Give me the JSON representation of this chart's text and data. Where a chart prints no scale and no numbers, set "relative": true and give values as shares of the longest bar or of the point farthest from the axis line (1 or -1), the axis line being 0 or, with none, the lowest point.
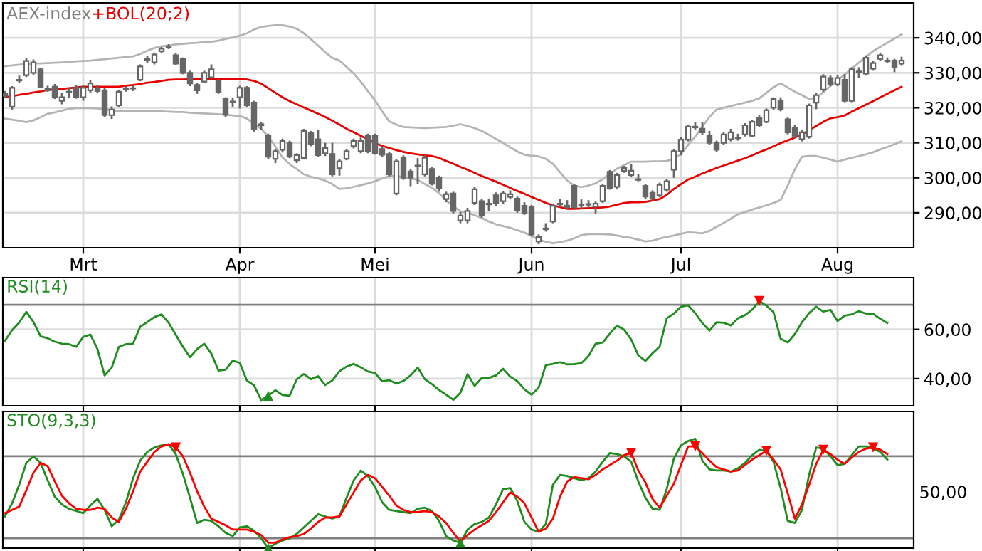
{
  "chart_data": [
    {
      "type": "candlestick",
      "title": "AEX-index",
      "color": "#666666",
      "categories": [
        null,
        null,
        null,
        null,
        null,
        null,
        null,
        null,
        null,
        null,
        null,
        "Mrt",
        null,
        null,
        null,
        null,
        null,
        null,
        null,
        null,
        null,
        null,
        null,
        null,
        null,
        null,
        null,
        null,
        null,
        null,
        null,
        null,
        null,
        "Apr",
        null,
        null,
        null,
        null,
        null,
        null,
        null,
        null,
        null,
        null,
        null,
        null,
        null,
        null,
        null,
        null,
        null,
        null,
        "Mei",
        null,
        null,
        null,
        null,
        null,
        null,
        null,
        null,
        null,
        null,
        null,
        null,
        null,
        null,
        null,
        null,
        null,
        null,
        null,
        null,
        null,
        "Jun",
        null,
        null,
        null,
        null,
        null,
        null,
        null,
        null,
        null,
        null,
        null,
        null,
        null,
        null,
        null,
        null,
        null,
        null,
        null,
        null,
        "Jul",
        null,
        null,
        null,
        null,
        null,
        null,
        null,
        null,
        null,
        null,
        null,
        null,
        null,
        null,
        null,
        null,
        null,
        null,
        null,
        null,
        null,
        "Aug",
        null,
        null,
        null,
        null,
        null,
        null,
        null,
        null,
        null
      ],
      "ohlc": [
        [
          324,
          324.8,
          322.8,
          323.4
        ],
        [
          320.3,
          326.2,
          319.5,
          325.7
        ],
        [
          327.8,
          329.2,
          327.2,
          328.0
        ],
        [
          329.3,
          334.2,
          328.8,
          333.4
        ],
        [
          330,
          333.8,
          329.5,
          333
        ],
        [
          331,
          331.5,
          325.6,
          326
        ],
        [
          325.4,
          326.3,
          324.6,
          325
        ],
        [
          326,
          326.8,
          322.5,
          323
        ],
        [
          322,
          324.2,
          321,
          323
        ],
        [
          324.5,
          325.8,
          322.8,
          324.6
        ],
        [
          325.7,
          326.5,
          322.6,
          323
        ],
        [
          323,
          326.4,
          322,
          325.7
        ],
        [
          325,
          328,
          324.3,
          327
        ],
        [
          325.6,
          326.4,
          324.2,
          324.8
        ],
        [
          325,
          325.6,
          317.4,
          317.9
        ],
        [
          317.9,
          320.4,
          316.8,
          319.5
        ],
        [
          320.7,
          325.2,
          320.1,
          324.6
        ],
        [
          325.3,
          326.2,
          324.6,
          325.5
        ],
        [
          325.5,
          326.4,
          324.8,
          325.6
        ],
        [
          328,
          332.4,
          327.6,
          331.8
        ],
        [
          333.7,
          334.8,
          332.8,
          333.9
        ],
        [
          333,
          335.8,
          332.4,
          335.2
        ],
        [
          336.2,
          337.4,
          335.6,
          336.9
        ],
        [
          337.3,
          338.2,
          336.8,
          337.5
        ],
        [
          335,
          335.6,
          332.2,
          332.6
        ],
        [
          333.9,
          334.4,
          329.6,
          330
        ],
        [
          330,
          330.6,
          326.2,
          327
        ],
        [
          326.5,
          327.2,
          324,
          325
        ],
        [
          327.5,
          330.6,
          327,
          330
        ],
        [
          328.7,
          332.4,
          328.2,
          331
        ],
        [
          327.6,
          328.2,
          324,
          324.4
        ],
        [
          322.5,
          323,
          317.4,
          318
        ],
        [
          321.6,
          322.8,
          320.2,
          321.8
        ],
        [
          323,
          326.3,
          319.8,
          325.7
        ],
        [
          325.7,
          326.2,
          320.2,
          320.7
        ],
        [
          321.5,
          322,
          313.2,
          313.8
        ],
        [
          315.3,
          316,
          313.6,
          315
        ],
        [
          312,
          312.6,
          305.4,
          306
        ],
        [
          305.4,
          308.2,
          304.2,
          307.6
        ],
        [
          308,
          311.2,
          307.2,
          310.5
        ],
        [
          310,
          310.6,
          305.6,
          306
        ],
        [
          305,
          307,
          304.2,
          306.5
        ],
        [
          305.6,
          314,
          305.2,
          313.4
        ],
        [
          312.8,
          313.4,
          309,
          309.6
        ],
        [
          311,
          313.8,
          306,
          306.5
        ],
        [
          307,
          310,
          306.2,
          308.5
        ],
        [
          306.8,
          310,
          300.4,
          301
        ],
        [
          302.7,
          305.4,
          300.6,
          304.7
        ],
        [
          305.4,
          308.2,
          305,
          307.6
        ],
        [
          309,
          311.2,
          308.4,
          310.5
        ],
        [
          307.6,
          311.5,
          307,
          310.5
        ],
        [
          312,
          312.6,
          307,
          307.6
        ],
        [
          312,
          312.6,
          306.6,
          307
        ],
        [
          308.2,
          309,
          306,
          306.6
        ],
        [
          306.8,
          307.4,
          300.4,
          301
        ],
        [
          295.5,
          305.4,
          295,
          304.7
        ],
        [
          305.7,
          306.4,
          299.4,
          300
        ],
        [
          301.8,
          302.6,
          297.6,
          300
        ],
        [
          303.3,
          305.6,
          298.2,
          303.5
        ],
        [
          301,
          306.4,
          300.4,
          305.7
        ],
        [
          302.5,
          303,
          297.8,
          298.3
        ],
        [
          300,
          300.6,
          296,
          297
        ],
        [
          293.9,
          296,
          293,
          295.3
        ],
        [
          295.5,
          296,
          289.8,
          290.5
        ],
        [
          287.8,
          290.2,
          287,
          289.2
        ],
        [
          287.8,
          291.4,
          287,
          290.5
        ],
        [
          292.8,
          297.4,
          292.2,
          296.7
        ],
        [
          293.3,
          294,
          288.6,
          289.2
        ],
        [
          292.4,
          294,
          290.4,
          292.6
        ],
        [
          295,
          295.8,
          291.8,
          292.8
        ],
        [
          293.3,
          296.2,
          292.6,
          295.5
        ],
        [
          294.5,
          296.4,
          293.8,
          295.3
        ],
        [
          294,
          294.6,
          290,
          290.6
        ],
        [
          292,
          293,
          289.4,
          290
        ],
        [
          291.6,
          292.2,
          283.2,
          283.8
        ],
        [
          281.8,
          283.8,
          281,
          283.1
        ],
        [
          285.3,
          287,
          284.6,
          285.5
        ],
        [
          287.5,
          292.6,
          287,
          292
        ],
        [
          292.4,
          294,
          291.6,
          292.6
        ],
        [
          292,
          293.6,
          291,
          291.6
        ],
        [
          297.7,
          298.2,
          291,
          291.6
        ],
        [
          292.1,
          293.8,
          291.2,
          292.3
        ],
        [
          292.5,
          293.6,
          291.4,
          292.3
        ],
        [
          291.8,
          293.2,
          289.8,
          292.6
        ],
        [
          293.3,
          298.2,
          292.8,
          297.7
        ],
        [
          301.7,
          302.2,
          296.6,
          297
        ],
        [
          297.4,
          301.4,
          296.8,
          300.8
        ],
        [
          302,
          303.4,
          301.4,
          302.8
        ],
        [
          300.8,
          304,
          300.2,
          302
        ],
        [
          299.6,
          301,
          299,
          299.4
        ],
        [
          297.7,
          298.2,
          294,
          294.6
        ],
        [
          295.7,
          296.4,
          293.2,
          294
        ],
        [
          295,
          298.6,
          294.4,
          298
        ],
        [
          296.6,
          299.6,
          296,
          299
        ],
        [
          302.3,
          308.2,
          300,
          307.6
        ],
        [
          307.6,
          311.6,
          306.4,
          310.9
        ],
        [
          310.9,
          315.2,
          310.4,
          314.6
        ],
        [
          314.4,
          315.8,
          313.8,
          314.6
        ],
        [
          314,
          316,
          312.2,
          313
        ],
        [
          312,
          313.4,
          309.4,
          310
        ],
        [
          310,
          310.6,
          307.4,
          308
        ],
        [
          310,
          313,
          309.4,
          312.4
        ],
        [
          311,
          314,
          310.4,
          313
        ],
        [
          311.3,
          312.6,
          310.6,
          311.5
        ],
        [
          312.4,
          315.6,
          311.8,
          315
        ],
        [
          312,
          316.6,
          311.6,
          316
        ],
        [
          317,
          317.8,
          314.4,
          315
        ],
        [
          316,
          319.8,
          315.6,
          319.3
        ],
        [
          320,
          323,
          319.4,
          322.5
        ],
        [
          321.9,
          323,
          319,
          319.5
        ],
        [
          316.7,
          317.2,
          312.4,
          313
        ],
        [
          314.3,
          315,
          311.4,
          312
        ],
        [
          311,
          313.6,
          310.4,
          313
        ],
        [
          311.7,
          321.2,
          311.2,
          320.7
        ],
        [
          321.5,
          324.2,
          319.6,
          323.6
        ],
        [
          325.2,
          329.6,
          324.6,
          328.9
        ],
        [
          328.5,
          329.2,
          326.2,
          326.7
        ],
        [
          326.7,
          329.4,
          326.2,
          328.5
        ],
        [
          328,
          329.6,
          321.6,
          322
        ],
        [
          322,
          331.6,
          321.6,
          331
        ],
        [
          330.2,
          331.6,
          328.6,
          330.4
        ],
        [
          329.8,
          335,
          329.2,
          334.3
        ],
        [
          331.2,
          333.4,
          330.6,
          332.8
        ],
        [
          334,
          335.6,
          333.4,
          335
        ],
        [
          333.3,
          334.4,
          332.8,
          333.5
        ],
        [
          333.5,
          334,
          330.2,
          331.6
        ],
        [
          332.6,
          334.6,
          332,
          333.5
        ]
      ],
      "series": [
        {
          "type": "line",
          "name": "+BOL(20;2)",
          "color": "#e60000",
          "values": [
            323.0,
            323.3,
            323.7,
            324.0,
            324.4,
            324.7,
            325.1,
            325.3,
            325.4,
            325.6,
            325.8,
            326.0,
            326.0,
            326.0,
            326.0,
            326.0,
            326.0,
            326.3,
            326.5,
            326.8,
            327.2,
            327.4,
            327.7,
            328.0,
            328.1,
            328.1,
            328.2,
            328.2,
            328.2,
            328.3,
            328.3,
            328.3,
            328.3,
            328.3,
            328.1,
            327.7,
            326.9,
            325.6,
            324.3,
            323.0,
            321.9,
            321.0,
            320.1,
            319.2,
            318.3,
            317.4,
            316.3,
            315.2,
            314.0,
            313.0,
            312.0,
            311.0,
            309.9,
            309.1,
            308.5,
            307.9,
            307.4,
            307.0,
            306.7,
            306.4,
            306.2,
            305.7,
            304.8,
            304.0,
            303.1,
            302.3,
            301.4,
            300.5,
            299.7,
            298.9,
            298.0,
            297.1,
            296.2,
            295.4,
            294.5,
            293.7,
            292.8,
            292.1,
            291.6,
            291.1,
            291.1,
            291.2,
            291.3,
            291.4,
            291.5,
            291.8,
            292.3,
            292.8,
            293.0,
            293.0,
            293.1,
            293.5,
            293.9,
            295.1,
            296.8,
            298.2,
            299.5,
            300.3,
            301.2,
            302.0,
            302.8,
            303.5,
            304.2,
            304.9,
            305.6,
            306.4,
            307.3,
            308.1,
            309.0,
            309.9,
            310.7,
            311.5,
            312.4,
            313.6,
            314.8,
            316.0,
            317.0,
            317.3,
            317.8,
            318.9,
            319.9,
            320.9,
            321.9,
            323.0,
            324.0,
            325.0,
            326.0
          ]
        },
        {
          "type": "line",
          "color": "#b4b4b4",
          "values": [
            331.9,
            332.1,
            332.3,
            332.5,
            332.7,
            332.7,
            332.8,
            332.9,
            333.0,
            333.1,
            333.3,
            333.4,
            333.5,
            333.7,
            333.9,
            334.1,
            334.3,
            334.5,
            334.7,
            335.4,
            336.3,
            337.1,
            337.6,
            337.8,
            338.1,
            338.3,
            338.5,
            338.6,
            338.8,
            338.9,
            339.2,
            339.7,
            340.1,
            340.6,
            341.3,
            342.4,
            343.1,
            343.4,
            343.6,
            343.6,
            343.2,
            342.6,
            341.3,
            339.6,
            337.8,
            335.9,
            334.3,
            333.5,
            331.7,
            329.8,
            327.5,
            324.8,
            322.1,
            319.0,
            316.1,
            315.2,
            314.5,
            314.4,
            314.3,
            314.2,
            314.3,
            314.4,
            314.5,
            314.9,
            315.3,
            314.8,
            314.2,
            313.4,
            312.3,
            311.1,
            310.0,
            308.7,
            307.5,
            306.6,
            306.3,
            306.1,
            305.4,
            304.0,
            301.6,
            299.2,
            297.8,
            297.3,
            297.8,
            298.4,
            299.6,
            301.1,
            302.6,
            303.6,
            304.6,
            304.6,
            304.6,
            304.7,
            304.7,
            304.8,
            305.4,
            306.8,
            309.4,
            311.8,
            314.6,
            317.4,
            319.5,
            320.0,
            320.5,
            321.0,
            321.5,
            322.0,
            322.7,
            324.3,
            325.9,
            327.0,
            325.8,
            324.6,
            323.6,
            322.6,
            322.7,
            324.5,
            326.2,
            327.9,
            329.5,
            331.2,
            332.9,
            334.6,
            336.2,
            337.4,
            338.6,
            339.8,
            341.0
          ]
        },
        {
          "type": "line",
          "color": "#b4b4b4",
          "values": [
            316.9,
            316.6,
            316.3,
            315.9,
            316.4,
            317.3,
            318.3,
            318.7,
            319.2,
            319.7,
            319.9,
            319.9,
            319.9,
            319.8,
            319.6,
            319.3,
            319.0,
            319.0,
            319.0,
            319.0,
            319.0,
            319.0,
            319.0,
            318.9,
            318.8,
            318.8,
            318.6,
            318.5,
            318.4,
            318.3,
            318.2,
            318.0,
            317.8,
            317.7,
            316.9,
            315.4,
            314.0,
            311.8,
            308.9,
            305.8,
            303.9,
            302.5,
            301.0,
            300.3,
            299.8,
            299.2,
            298.2,
            296.8,
            297.0,
            297.4,
            297.9,
            298.4,
            299.0,
            299.8,
            300.5,
            300.4,
            300.2,
            299.8,
            299.4,
            298.2,
            297.1,
            295.6,
            293.5,
            291.9,
            290.4,
            290.0,
            289.3,
            288.5,
            287.5,
            286.7,
            286.2,
            285.7,
            285.0,
            284.3,
            283.4,
            282.3,
            281.7,
            281.3,
            281.6,
            282.0,
            282.7,
            283.6,
            283.9,
            283.9,
            283.9,
            283.8,
            283.5,
            283.1,
            282.8,
            282.3,
            281.8,
            282.0,
            282.6,
            283.1,
            283.5,
            284.0,
            284.4,
            284.3,
            284.1,
            284.8,
            286.0,
            287.1,
            288.3,
            289.6,
            290.2,
            290.9,
            291.5,
            292.1,
            292.8,
            293.6,
            297.8,
            302.4,
            306.0,
            306.2,
            306.2,
            305.7,
            305.2,
            304.6,
            305.2,
            305.7,
            306.2,
            306.7,
            307.3,
            308.1,
            308.8,
            309.6,
            310.4
          ]
        }
      ],
      "ylim": [
        280,
        350
      ],
      "yticks": [
        {
          "value": 290,
          "label": "290,00"
        },
        {
          "value": 300,
          "label": "300,00"
        },
        {
          "value": 310,
          "label": "310,00"
        },
        {
          "value": 320,
          "label": "320,00"
        },
        {
          "value": 330,
          "label": "330,00"
        },
        {
          "value": 340,
          "label": "340,00"
        }
      ],
      "grid": true
    },
    {
      "type": "line",
      "title": "RSI(14)",
      "tick_labels": "y",
      "series": [
        {
          "color": "#1e8c1e",
          "values": [
            55.4,
            59.7,
            62.8,
            67.1,
            63.0,
            57.2,
            56.4,
            55.0,
            54.2,
            54.0,
            52.9,
            57.0,
            57.9,
            52.0,
            41.3,
            44.5,
            52.9,
            54.0,
            54.2,
            61.1,
            63.0,
            65.0,
            66.1,
            62.7,
            57.8,
            53.0,
            48.7,
            52.0,
            54.2,
            50.2,
            43.3,
            43.6,
            47.3,
            46.4,
            39.2,
            37.3,
            31.3,
            33.1,
            35.3,
            33.4,
            33.1,
            39.7,
            41.9,
            39.8,
            41.0,
            37.4,
            39.3,
            43.0,
            44.9,
            46.0,
            44.6,
            42.9,
            42.3,
            38.9,
            39.4,
            38.0,
            39.1,
            41.3,
            44.5,
            39.8,
            37.8,
            35.4,
            33.5,
            31.4,
            34.3,
            41.8,
            37.1,
            40.3,
            40.3,
            41.3,
            44.0,
            40.8,
            39.0,
            35.7,
            33.5,
            36.4,
            45.5,
            46.0,
            46.7,
            45.8,
            45.9,
            46.3,
            49.2,
            54.2,
            54.7,
            58.3,
            61.5,
            59.9,
            55.9,
            49.5,
            47.2,
            50.3,
            53.0,
            64.5,
            66.4,
            69.2,
            69.8,
            66.6,
            62.6,
            59.5,
            62.9,
            62.7,
            61.6,
            64.5,
            65.8,
            68.0,
            71.5,
            69.6,
            67.0,
            56.2,
            54.7,
            58.1,
            62.9,
            66.6,
            69.2,
            67.2,
            67.9,
            63.4,
            65.6,
            66.1,
            67.4,
            66.4,
            66.3,
            64.3,
            62.6,
            null,
            null
          ]
        },
        {
          "type": "scatter",
          "marker": "triangle",
          "color": "#1e8c1e",
          "values": [
            null,
            null,
            null,
            null,
            null,
            null,
            null,
            null,
            null,
            null,
            null,
            null,
            null,
            null,
            null,
            null,
            null,
            null,
            null,
            null,
            null,
            null,
            null,
            null,
            null,
            null,
            null,
            null,
            null,
            null,
            null,
            null,
            null,
            null,
            null,
            null,
            null,
            33.1,
            null,
            null,
            null,
            null,
            null,
            null,
            null,
            null,
            null,
            null,
            null,
            null,
            null,
            null,
            null,
            null,
            null,
            null,
            null,
            null,
            null,
            null,
            null,
            null,
            null,
            null,
            null,
            null,
            null,
            null,
            null,
            null,
            null,
            null,
            null,
            null,
            null,
            null,
            null,
            null,
            null,
            null,
            null,
            null,
            null,
            null,
            null,
            null,
            null,
            null,
            null,
            null,
            null,
            null,
            null,
            null,
            null,
            null,
            null,
            null,
            null,
            null,
            null,
            null,
            null,
            null,
            null,
            null,
            null,
            null,
            null,
            null,
            null,
            null,
            null,
            null,
            null,
            null,
            null,
            null,
            null,
            null,
            null,
            null,
            null,
            null,
            null,
            null,
            null
          ]
        },
        {
          "type": "scatter",
          "marker": "triangle_down",
          "color": "#ff0000",
          "values": [
            null,
            null,
            null,
            null,
            null,
            null,
            null,
            null,
            null,
            null,
            null,
            null,
            null,
            null,
            null,
            null,
            null,
            null,
            null,
            null,
            null,
            null,
            null,
            null,
            null,
            null,
            null,
            null,
            null,
            null,
            null,
            null,
            null,
            null,
            null,
            null,
            null,
            null,
            null,
            null,
            null,
            null,
            null,
            null,
            null,
            null,
            null,
            null,
            null,
            null,
            null,
            null,
            null,
            null,
            null,
            null,
            null,
            null,
            null,
            null,
            null,
            null,
            null,
            null,
            null,
            null,
            null,
            null,
            null,
            null,
            null,
            null,
            null,
            null,
            null,
            null,
            null,
            null,
            null,
            null,
            null,
            null,
            null,
            null,
            null,
            null,
            null,
            null,
            null,
            null,
            null,
            null,
            null,
            null,
            null,
            null,
            null,
            null,
            null,
            null,
            null,
            null,
            null,
            null,
            null,
            null,
            71.5,
            null,
            null,
            null,
            null,
            null,
            null,
            null,
            null,
            null,
            null,
            null,
            null,
            null,
            null,
            null,
            null,
            null,
            null,
            null,
            null
          ]
        }
      ],
      "ref_lines": [
        {
          "axis": "y",
          "value": 70,
          "color": "#808080"
        }
      ],
      "ylim": [
        29,
        81
      ],
      "yticks": [
        {
          "value": 40,
          "label": "40,00"
        },
        {
          "value": 60,
          "label": "60,00"
        }
      ],
      "grid": true
    },
    {
      "type": "line",
      "title": "STO(9,3,3)",
      "tick_labels": false,
      "relative": true,
      "series": [
        {
          "color": "#1e8c1e",
          "values": [
            0.29,
            0.41,
            0.58,
            0.78,
            0.84,
            0.78,
            0.62,
            0.47,
            0.4,
            0.36,
            0.34,
            0.32,
            0.39,
            0.45,
            0.35,
            0.2,
            0.26,
            0.42,
            0.64,
            0.8,
            0.88,
            0.92,
            0.94,
            0.95,
            0.86,
            0.68,
            0.46,
            0.23,
            0.26,
            0.25,
            0.2,
            0.14,
            0.11,
            0.19,
            0.2,
            0.16,
            0.09,
            0.0,
            0.04,
            0.07,
            0.09,
            0.13,
            0.19,
            0.25,
            0.31,
            0.29,
            0.27,
            0.29,
            0.46,
            0.62,
            0.71,
            0.66,
            0.56,
            0.42,
            0.35,
            0.34,
            0.33,
            0.32,
            0.36,
            0.37,
            0.34,
            0.25,
            0.11,
            0.07,
            0.05,
            0.17,
            0.22,
            0.24,
            0.28,
            0.4,
            0.54,
            0.55,
            0.43,
            0.24,
            0.17,
            0.15,
            0.22,
            0.58,
            0.67,
            0.66,
            0.64,
            0.62,
            0.64,
            0.7,
            0.79,
            0.87,
            0.86,
            0.84,
            0.79,
            0.61,
            0.46,
            0.36,
            0.35,
            0.54,
            0.82,
            0.94,
            0.98,
            1.0,
            0.8,
            0.72,
            0.71,
            0.71,
            0.7,
            0.73,
            0.78,
            0.85,
            0.9,
            0.89,
            0.79,
            0.55,
            0.25,
            0.23,
            0.35,
            0.67,
            0.92,
            0.91,
            0.84,
            0.76,
            0.77,
            0.85,
            0.93,
            0.93,
            0.91,
            0.88,
            0.81,
            null,
            null
          ]
        },
        {
          "color": "#ff0000",
          "values": [
            0.32,
            0.35,
            0.38,
            0.53,
            0.69,
            0.78,
            0.75,
            0.61,
            0.48,
            0.41,
            0.36,
            0.35,
            0.35,
            0.37,
            0.36,
            0.28,
            0.24,
            0.36,
            0.52,
            0.7,
            0.79,
            0.88,
            0.93,
            0.95,
            0.92,
            0.84,
            0.69,
            0.52,
            0.38,
            0.27,
            0.24,
            0.21,
            0.17,
            0.17,
            0.17,
            0.15,
            0.12,
            0.05,
            0.05,
            0.08,
            0.1,
            0.11,
            0.13,
            0.18,
            0.24,
            0.28,
            0.28,
            0.29,
            0.4,
            0.51,
            0.62,
            0.67,
            0.64,
            0.56,
            0.48,
            0.39,
            0.35,
            0.33,
            0.33,
            0.34,
            0.33,
            0.29,
            0.23,
            0.14,
            0.06,
            0.12,
            0.17,
            0.21,
            0.25,
            0.33,
            0.42,
            0.51,
            0.47,
            0.41,
            0.28,
            0.15,
            0.18,
            0.27,
            0.47,
            0.61,
            0.65,
            0.64,
            0.63,
            0.67,
            0.72,
            0.76,
            0.8,
            0.85,
            0.87,
            0.71,
            0.6,
            0.45,
            0.37,
            0.48,
            0.59,
            0.76,
            0.93,
            0.93,
            0.87,
            0.8,
            0.74,
            0.72,
            0.7,
            0.71,
            0.76,
            0.81,
            0.85,
            0.89,
            0.81,
            0.72,
            0.5,
            0.27,
            0.4,
            0.58,
            0.77,
            0.9,
            0.86,
            0.81,
            0.77,
            0.83,
            0.88,
            0.91,
            0.92,
            0.9,
            0.86,
            null,
            null
          ]
        },
        {
          "type": "scatter",
          "marker": "triangle",
          "color": "#1e8c1e",
          "values": [
            null,
            null,
            null,
            null,
            null,
            null,
            null,
            null,
            null,
            null,
            null,
            null,
            null,
            null,
            null,
            null,
            null,
            null,
            null,
            null,
            null,
            null,
            null,
            null,
            null,
            null,
            null,
            null,
            null,
            null,
            null,
            null,
            null,
            null,
            null,
            null,
            null,
            0.0,
            null,
            null,
            null,
            null,
            null,
            null,
            null,
            null,
            null,
            null,
            null,
            null,
            null,
            null,
            null,
            null,
            null,
            null,
            null,
            null,
            null,
            null,
            null,
            null,
            null,
            null,
            0.05,
            null,
            null,
            null,
            null,
            null,
            null,
            null,
            null,
            null,
            null,
            null,
            null,
            null,
            null,
            null,
            null,
            null,
            null,
            null,
            null,
            null,
            null,
            null,
            null,
            null,
            null,
            null,
            null,
            null,
            null,
            null,
            null,
            null,
            null,
            null,
            null,
            null,
            null,
            null,
            null,
            null,
            null,
            null,
            null,
            null,
            null,
            null,
            null,
            null,
            null,
            null,
            null,
            null,
            null,
            null,
            null,
            null,
            null,
            null,
            null,
            null,
            null
          ]
        },
        {
          "type": "scatter",
          "marker": "triangle_down",
          "color": "#ff0000",
          "values": [
            null,
            null,
            null,
            null,
            null,
            null,
            null,
            null,
            null,
            null,
            null,
            null,
            null,
            null,
            null,
            null,
            null,
            null,
            null,
            null,
            null,
            null,
            null,
            null,
            0.92,
            null,
            null,
            null,
            null,
            null,
            null,
            null,
            null,
            null,
            null,
            null,
            null,
            null,
            null,
            null,
            null,
            null,
            null,
            null,
            null,
            null,
            null,
            null,
            null,
            null,
            null,
            null,
            null,
            null,
            null,
            null,
            null,
            null,
            null,
            null,
            null,
            null,
            null,
            null,
            null,
            null,
            null,
            null,
            null,
            null,
            null,
            null,
            null,
            null,
            null,
            null,
            null,
            null,
            null,
            null,
            null,
            null,
            null,
            null,
            null,
            null,
            null,
            null,
            0.87,
            null,
            null,
            null,
            null,
            null,
            null,
            null,
            null,
            0.93,
            null,
            null,
            null,
            null,
            null,
            null,
            null,
            null,
            null,
            0.89,
            null,
            null,
            null,
            null,
            null,
            null,
            null,
            0.9,
            null,
            null,
            null,
            null,
            null,
            null,
            0.92,
            null,
            null,
            null,
            null
          ]
        }
      ],
      "ref_lines": [
        {
          "axis": "y",
          "value": 0.84,
          "color": "#808080"
        },
        {
          "axis": "y",
          "value": 0.09,
          "color": "#808080"
        }
      ],
      "annotations": [
        "50,00"
      ],
      "grid": "x"
    }
  ]
}
